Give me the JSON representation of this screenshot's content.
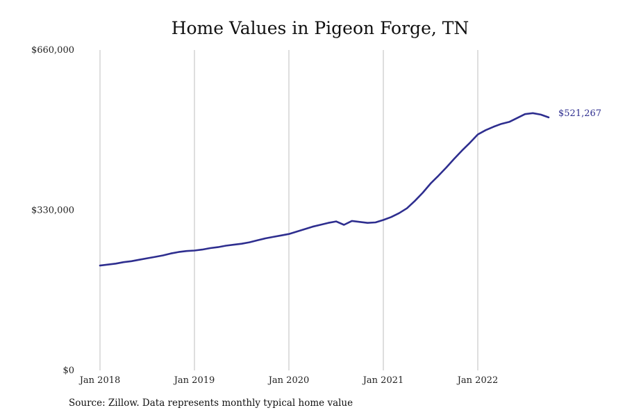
{
  "chart_data": {
    "type": "line",
    "title": "Home Values in Pigeon Forge, TN",
    "xlabel": "",
    "ylabel": "",
    "ylim": [
      0,
      660000
    ],
    "yticks": [
      0,
      330000,
      660000
    ],
    "ytick_labels": [
      "$0",
      "$330,000",
      "$660,000"
    ],
    "xticks": [
      "2018-01",
      "2019-01",
      "2020-01",
      "2021-01",
      "2022-01"
    ],
    "xtick_labels": [
      "Jan 2018",
      "Jan 2019",
      "Jan 2020",
      "Jan 2021",
      "Jan 2022"
    ],
    "grid": "vertical",
    "line_color": "#2e2e8f",
    "series": [
      {
        "x": [
          "2018-01",
          "2018-02",
          "2018-03",
          "2018-04",
          "2018-05",
          "2018-06",
          "2018-07",
          "2018-08",
          "2018-09",
          "2018-10",
          "2018-11",
          "2018-12",
          "2019-01",
          "2019-02",
          "2019-03",
          "2019-04",
          "2019-05",
          "2019-06",
          "2019-07",
          "2019-08",
          "2019-09",
          "2019-10",
          "2019-11",
          "2019-12",
          "2020-01",
          "2020-02",
          "2020-03",
          "2020-04",
          "2020-05",
          "2020-06",
          "2020-07",
          "2020-08",
          "2020-09",
          "2020-10",
          "2020-11",
          "2020-12",
          "2021-01",
          "2021-02",
          "2021-03",
          "2021-04",
          "2021-05",
          "2021-06",
          "2021-07",
          "2021-08",
          "2021-09",
          "2021-10",
          "2021-11",
          "2021-12",
          "2022-01",
          "2022-02",
          "2022-03",
          "2022-04",
          "2022-05",
          "2022-06",
          "2022-07",
          "2022-08",
          "2022-09",
          "2022-10"
        ],
        "values": [
          216000,
          218000,
          220000,
          223000,
          225000,
          228000,
          231000,
          234000,
          237000,
          241000,
          244000,
          246000,
          247000,
          249000,
          252000,
          254000,
          257000,
          259000,
          261000,
          264000,
          268000,
          272000,
          275000,
          278000,
          281000,
          286000,
          291000,
          296000,
          300000,
          304000,
          307000,
          300000,
          308000,
          306000,
          304000,
          305000,
          310000,
          316000,
          324000,
          334000,
          349000,
          366000,
          385000,
          401000,
          418000,
          436000,
          453000,
          469000,
          486000,
          495000,
          502000,
          508000,
          512000,
          520000,
          528000,
          530000,
          527000,
          521267
        ]
      }
    ],
    "end_label": "$521,267",
    "source_note": "Source: Zillow. Data represents monthly typical home value"
  }
}
